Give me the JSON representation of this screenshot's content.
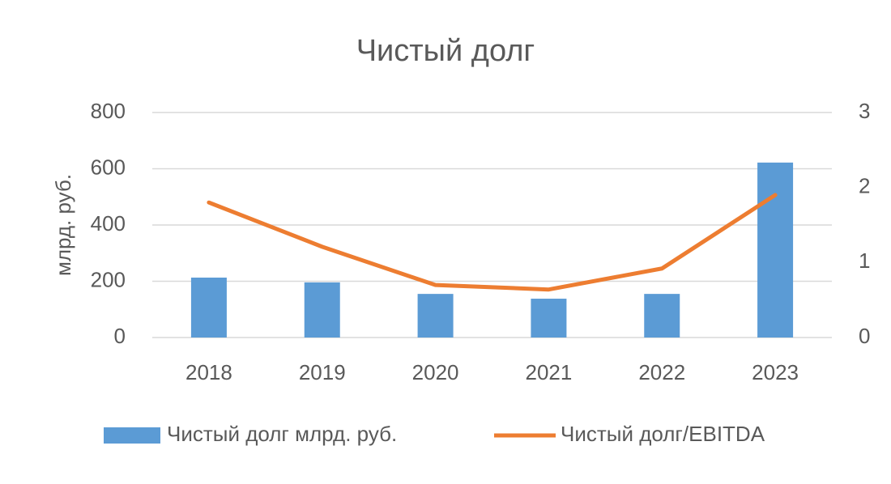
{
  "chart_data": {
    "type": "bar-line",
    "title": "Чистый долг",
    "y_label": "млрд. руб.",
    "categories": [
      "2018",
      "2019",
      "2020",
      "2021",
      "2022",
      "2023"
    ],
    "series": [
      {
        "name": "Чистый долг млрд. руб.",
        "type": "bar",
        "color": "#5b9bd5",
        "values": [
          213,
          196,
          155,
          138,
          155,
          622
        ]
      },
      {
        "name": "Чистый долг/EBITDA",
        "type": "line",
        "axis": "y2",
        "color": "#ed7d31",
        "values": [
          1.8,
          1.21,
          0.7,
          0.64,
          0.92,
          1.9
        ]
      }
    ],
    "ylim": [
      0,
      800
    ],
    "yticks": [
      0,
      200,
      400,
      600,
      800
    ],
    "y2lim": [
      0,
      3
    ],
    "y2ticks": [
      0,
      1,
      2,
      3
    ],
    "grid": true,
    "legend": "bottom"
  }
}
